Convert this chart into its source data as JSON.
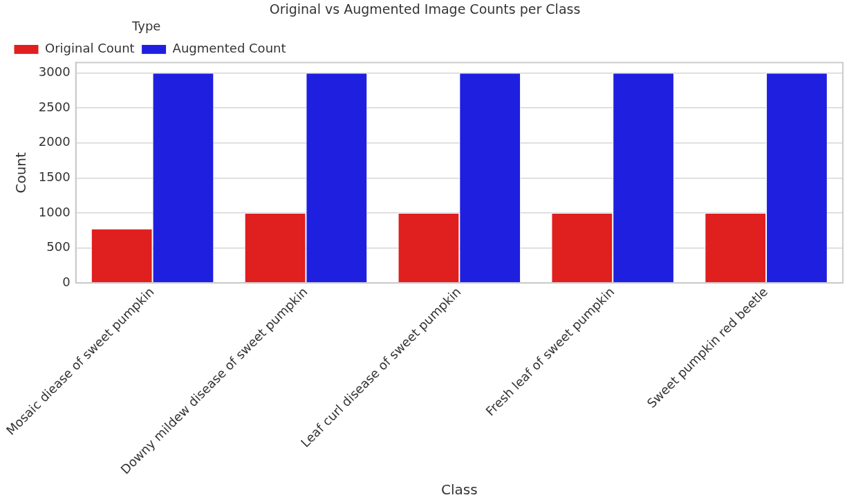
{
  "chart_data": {
    "type": "bar",
    "title": "Original vs Augmented Image Counts per Class",
    "xlabel": "Class",
    "ylabel": "Count",
    "legend_title": "Type",
    "categories": [
      "Mosaic diease of sweet pumpkin",
      "Downy mildew disease of sweet pumpkin",
      "Leaf curl disease of sweet pumpkin",
      "Fresh leaf of sweet pumpkin",
      "Sweet pumpkin red beetle"
    ],
    "series": [
      {
        "name": "Original Count",
        "color": "#e01f1f",
        "values": [
          775,
          1000,
          1000,
          1000,
          1000
        ]
      },
      {
        "name": "Augmented Count",
        "color": "#1f1fe0",
        "values": [
          3000,
          3000,
          3000,
          3000,
          3000
        ]
      }
    ],
    "ylim": [
      0,
      3150
    ],
    "yticks": [
      0,
      500,
      1000,
      1500,
      2000,
      2500,
      3000
    ],
    "grid": "y",
    "legend": "top left"
  }
}
